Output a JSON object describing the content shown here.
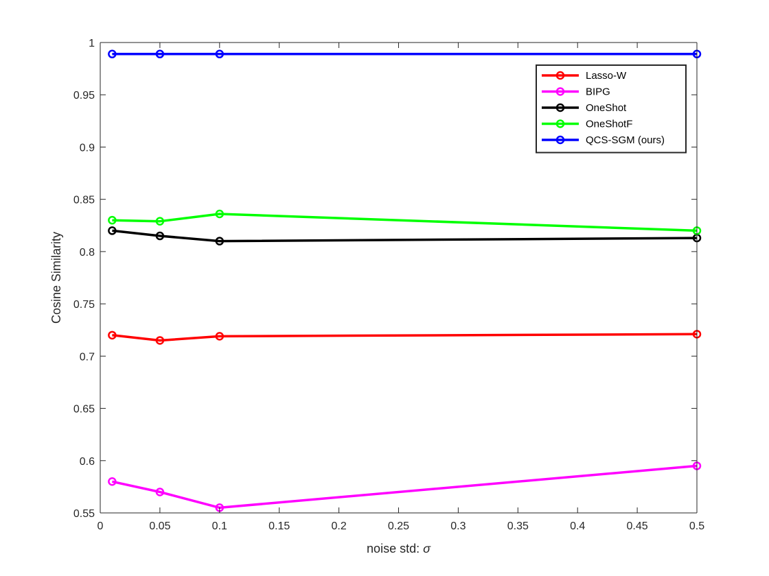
{
  "chart_data": {
    "type": "line",
    "xlabel": "noise std: ",
    "xlabel_symbol": "σ",
    "ylabel": "Cosine Similarity",
    "xlim": [
      0,
      0.5
    ],
    "ylim": [
      0.55,
      1
    ],
    "xticks": [
      0,
      0.05,
      0.1,
      0.15,
      0.2,
      0.25,
      0.3,
      0.35,
      0.4,
      0.45,
      0.5
    ],
    "xtick_labels": [
      "0",
      "0.05",
      "0.1",
      "0.15",
      "0.2",
      "0.25",
      "0.3",
      "0.35",
      "0.4",
      "0.45",
      "0.5"
    ],
    "yticks": [
      0.55,
      0.6,
      0.65,
      0.7,
      0.75,
      0.8,
      0.85,
      0.9,
      0.95,
      1
    ],
    "ytick_labels": [
      "0.55",
      "0.6",
      "0.65",
      "0.7",
      "0.75",
      "0.8",
      "0.85",
      "0.9",
      "0.95",
      "1"
    ],
    "grid": false,
    "legend_position": "top-right",
    "marker": "circle",
    "x": [
      0.01,
      0.05,
      0.1,
      0.5
    ],
    "series": [
      {
        "name": "Lasso-W",
        "color": "#ff0000",
        "values": [
          0.72,
          0.715,
          0.719,
          0.721
        ]
      },
      {
        "name": "BIPG",
        "color": "#ff00ff",
        "values": [
          0.58,
          0.57,
          0.555,
          0.595
        ]
      },
      {
        "name": "OneShot",
        "color": "#000000",
        "values": [
          0.82,
          0.815,
          0.81,
          0.813
        ]
      },
      {
        "name": "OneShotF",
        "color": "#00ff00",
        "values": [
          0.83,
          0.829,
          0.836,
          0.82
        ]
      },
      {
        "name": "QCS-SGM (ours)",
        "color": "#0000ff",
        "values": [
          0.989,
          0.989,
          0.989,
          0.989
        ]
      }
    ]
  }
}
